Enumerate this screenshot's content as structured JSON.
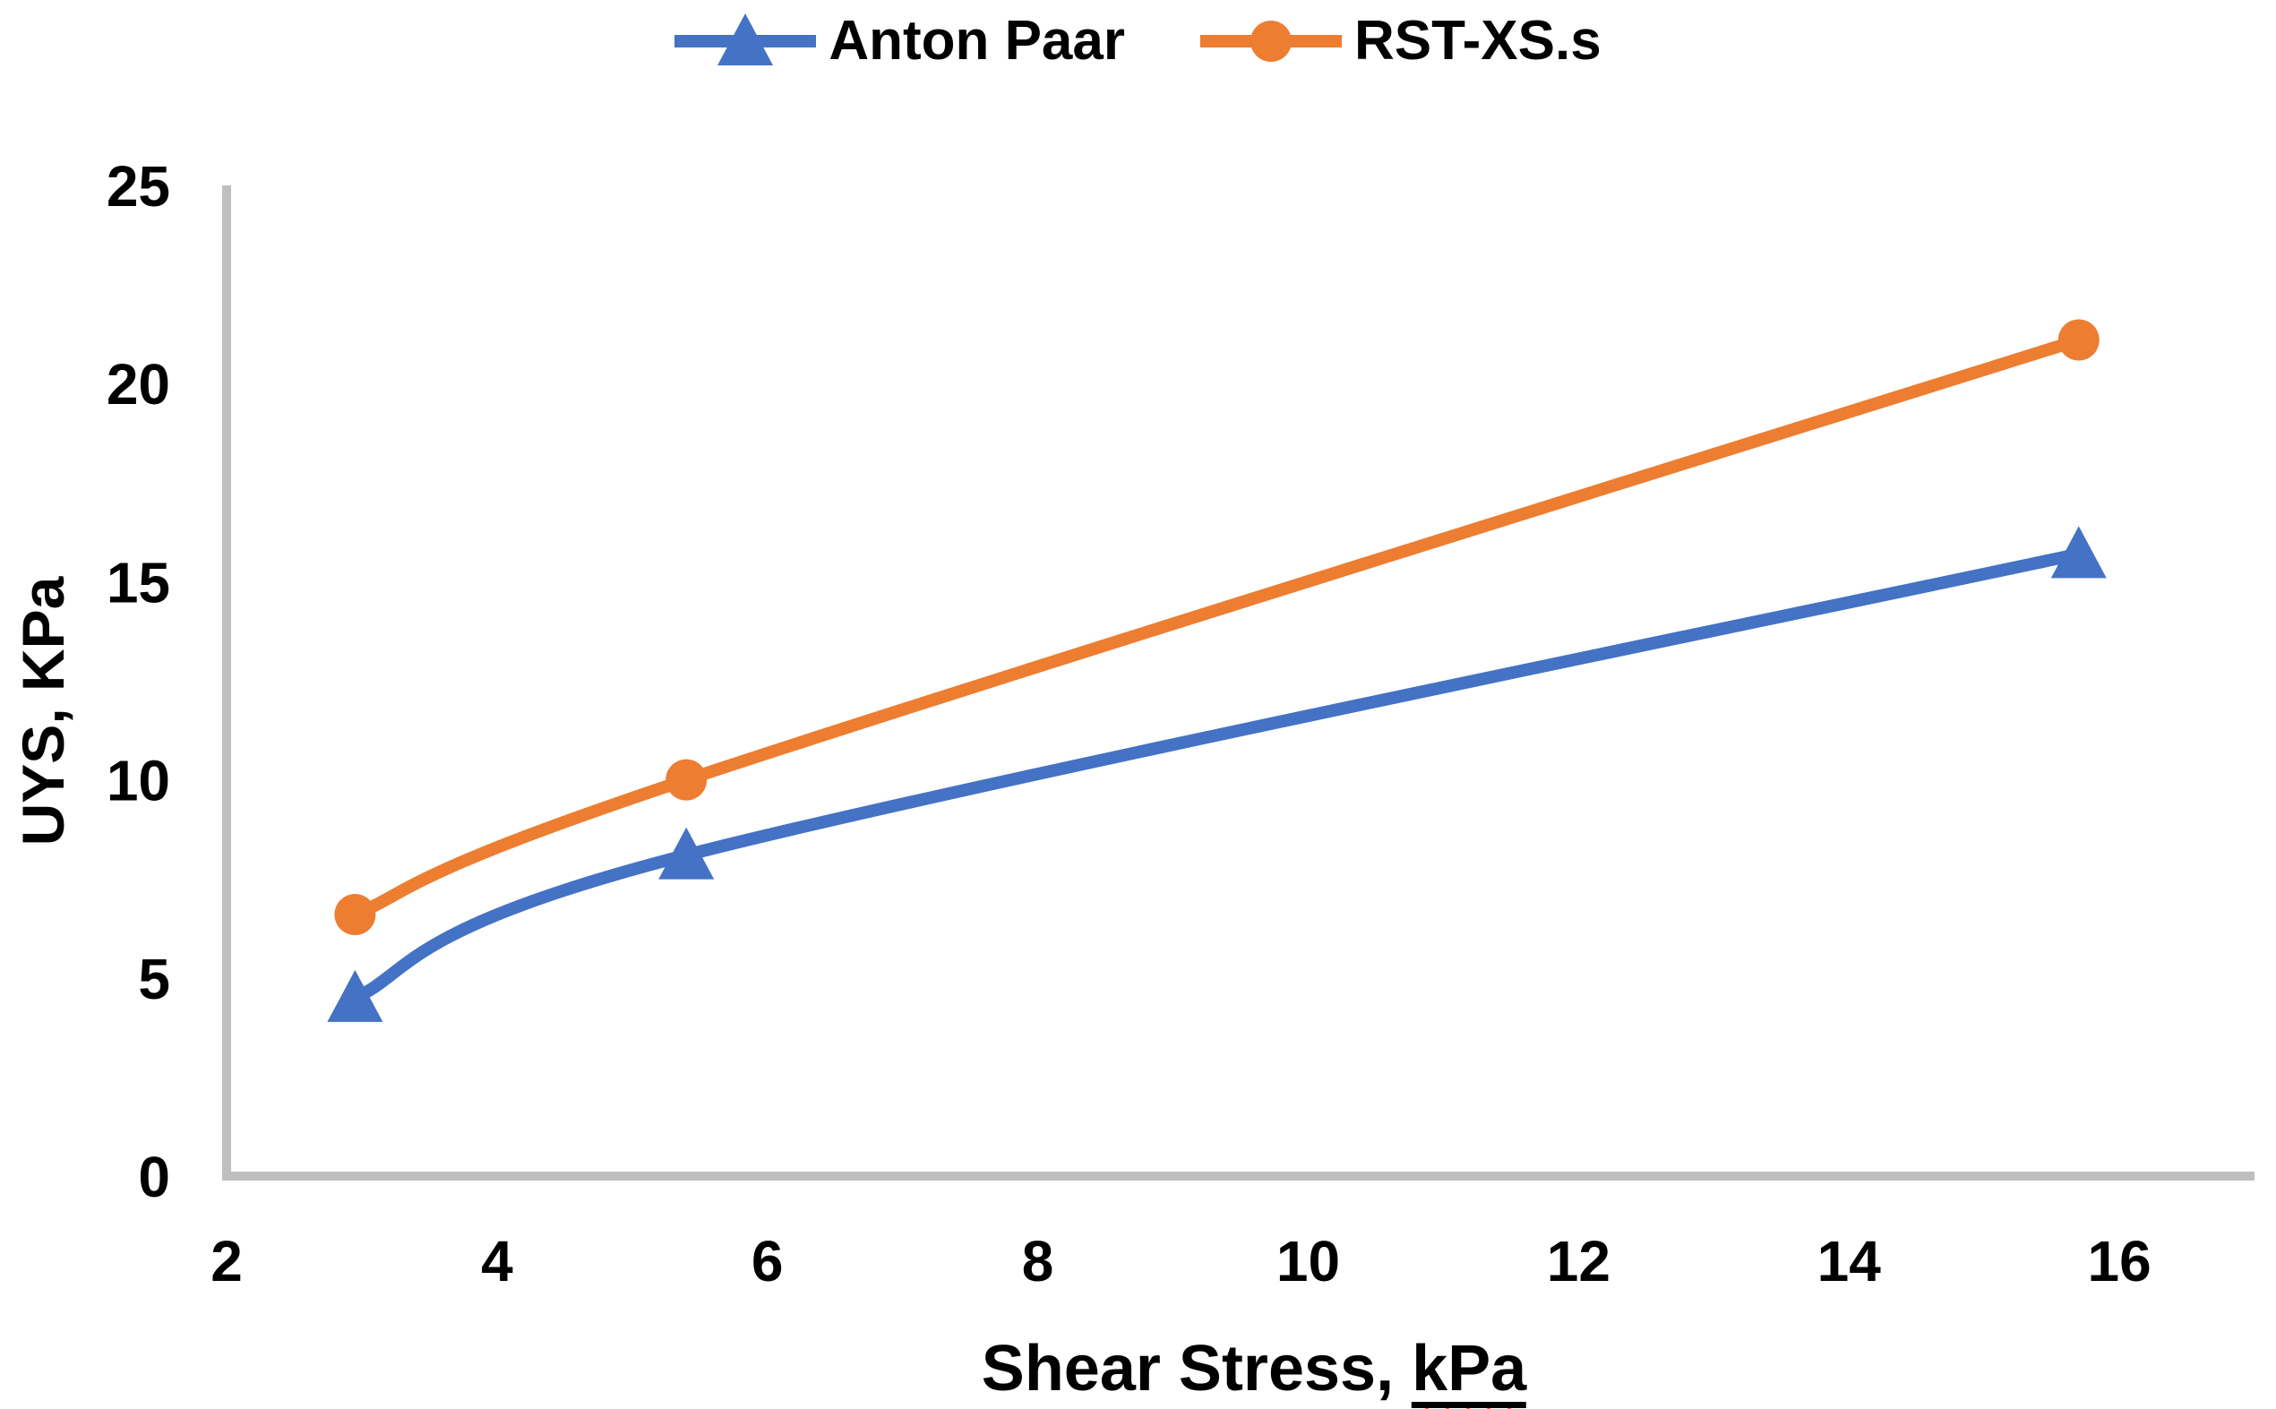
{
  "chart_data": {
    "type": "line",
    "title": "",
    "xlabel": "Shear Stress, kPa",
    "xlabel_parts": {
      "prefix": "Shear Stress, ",
      "unit": "kPa",
      "unit_underlined": true,
      "unit_squiggle_color": "#ff0000"
    },
    "ylabel": "UYS, KPa",
    "x": [
      2.95,
      5.4,
      15.7
    ],
    "series": [
      {
        "name": "Anton Paar",
        "values": [
          4.5,
          8.1,
          15.7
        ],
        "color": "#4472C4",
        "marker": "triangle"
      },
      {
        "name": "RST-XS.s",
        "values": [
          6.6,
          10,
          21.1
        ],
        "color": "#ED7D31",
        "marker": "circle"
      }
    ],
    "xlim": [
      2,
      17
    ],
    "ylim": [
      0,
      25
    ],
    "x_ticks": [
      2,
      4,
      6,
      8,
      10,
      12,
      14,
      16
    ],
    "y_ticks": [
      0,
      5,
      10,
      15,
      20,
      25
    ],
    "grid": false,
    "smooth": true,
    "legend_position": "top-center",
    "axis_color": "#BFBFBF",
    "text_color": "#000000",
    "background": "#FFFFFF"
  }
}
